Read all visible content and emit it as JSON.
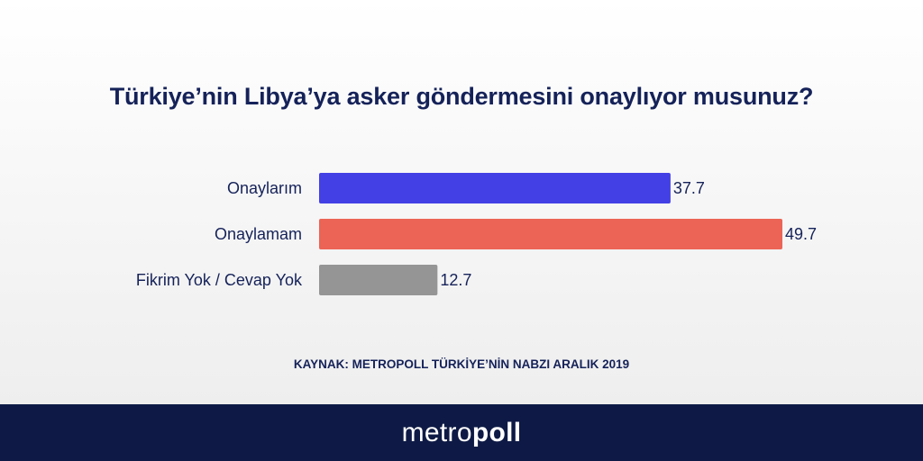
{
  "chart_data": {
    "type": "bar",
    "orientation": "horizontal",
    "title": "Türkiye’nin Libya’ya asker göndermesini onaylıyor musunuz?",
    "categories": [
      "Onaylarım",
      "Onaylamam",
      "Fikrim Yok / Cevap Yok"
    ],
    "values": [
      37.7,
      49.7,
      12.7
    ],
    "value_labels": [
      "37.7",
      "49.7",
      "12.7"
    ],
    "colors": [
      "#4340e6",
      "#ec6455",
      "#959595"
    ],
    "xlim": [
      0,
      49.7
    ],
    "grid": false,
    "legend": "none"
  },
  "source": "KAYNAK: METROPOLL TÜRKİYE’NİN NABZI ARALIK 2019",
  "logo": {
    "part1": "metro",
    "part2": "poll"
  }
}
